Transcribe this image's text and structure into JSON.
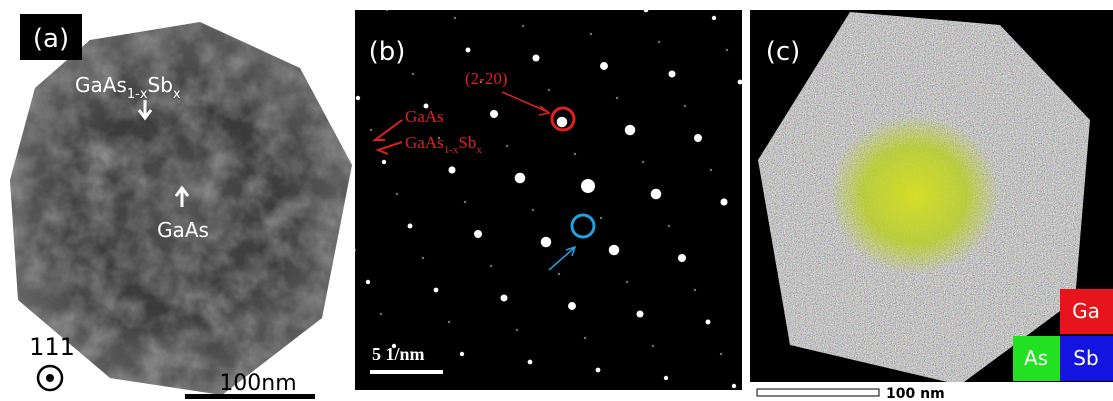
{
  "panel_a": {
    "label": "(a)",
    "alloy": [
      "GaAs",
      "1-x",
      "Sb",
      "x"
    ],
    "core": "GaAs",
    "orientation": "111",
    "scale_bar": "100nm"
  },
  "panel_b": {
    "label": "(b)",
    "spot": "(2-20)",
    "phase_1": "GaAs",
    "phase_2": [
      "GaAs",
      "1-x",
      "Sb",
      "x"
    ],
    "scale_bar": "5 1/nm"
  },
  "panel_c": {
    "label": "(c)",
    "elements": [
      "Ga",
      "As",
      "Sb"
    ],
    "scale_bar": "100 nm"
  }
}
